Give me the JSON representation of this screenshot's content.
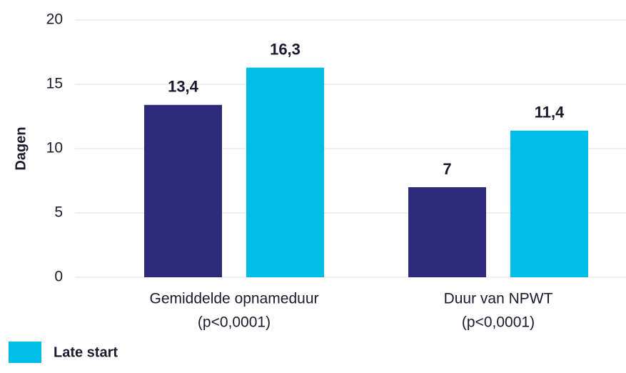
{
  "chart_data": {
    "type": "bar",
    "y_label": "Dagen",
    "categories": [
      "Gemiddelde opnameduur",
      "Duur van NPWT"
    ],
    "category_notes": [
      "(p<0,0001)",
      "(p<0,0001)"
    ],
    "series": [
      {
        "color": "#2b2a7b",
        "values": [
          13.4,
          7
        ],
        "value_labels": [
          "13,4",
          "7"
        ]
      },
      {
        "name": "Late start",
        "color": "#00bde6",
        "values": [
          16.3,
          11.4
        ],
        "value_labels": [
          "16,3",
          "11,4"
        ]
      }
    ],
    "ylim": [
      0,
      20
    ],
    "yticks": [
      0,
      5,
      10,
      15,
      20
    ],
    "grid": true,
    "legend": "bottom-left"
  }
}
